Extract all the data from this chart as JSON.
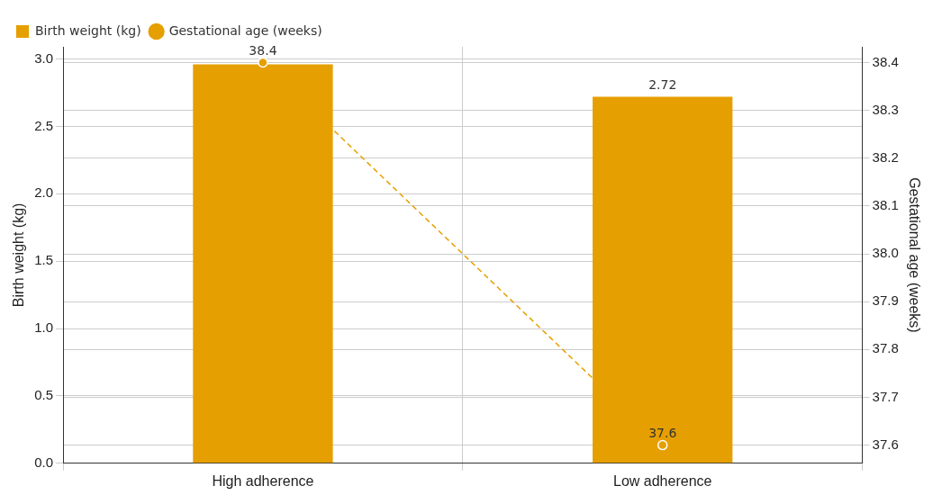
{
  "chart_data": {
    "type": "bar",
    "categories": [
      "High adherence",
      "Low adherence"
    ],
    "series": [
      {
        "name": "Birth weight (kg)",
        "color": "#e69f00",
        "values": [
          2.96,
          2.72
        ],
        "value_labels": [
          null,
          "2.72"
        ]
      },
      {
        "name": "Gestational age (weeks)",
        "type": "line",
        "axis": "y2",
        "color": "#e69f00",
        "values": [
          38.4,
          37.6
        ],
        "value_labels": [
          "38.4",
          "37.6"
        ],
        "marker": "circle",
        "line_style": "dashed"
      }
    ],
    "ylabel": "Birth weight (kg)",
    "y2label": "Gestational age (weeks)",
    "ylim": [
      0,
      3.09
    ],
    "yticks": [
      {
        "value": 0,
        "label": "0.0"
      },
      0.5,
      {
        "value": 1,
        "label": "1.0"
      },
      1.5,
      {
        "value": 2,
        "label": "2.0"
      },
      2.5,
      {
        "value": 3,
        "label": "3.0"
      }
    ],
    "y2lim": [
      37.562,
      38.433
    ],
    "y2ticks": [
      37.6,
      37.7,
      37.8,
      37.9,
      {
        "value": 38,
        "label": "38.0"
      },
      38.1,
      38.2,
      38.3,
      38.4
    ],
    "grid": true,
    "legend": "top left"
  }
}
